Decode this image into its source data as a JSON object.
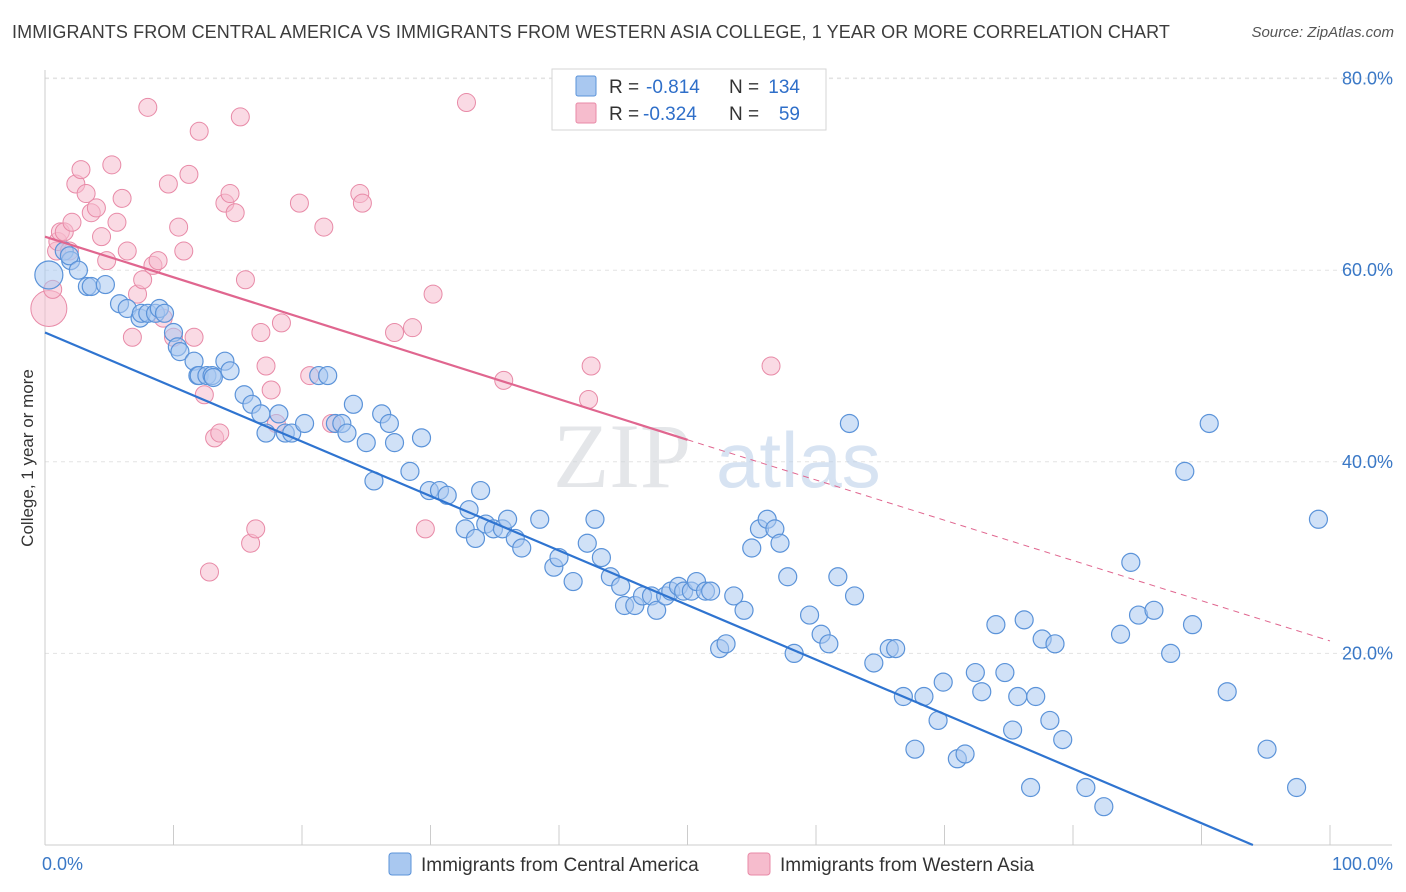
{
  "title": "IMMIGRANTS FROM CENTRAL AMERICA VS IMMIGRANTS FROM WESTERN ASIA COLLEGE, 1 YEAR OR MORE CORRELATION CHART",
  "source": "Source: ZipAtlas.com",
  "watermark": {
    "zip": "ZIP",
    "atlas": "atlas"
  },
  "colors": {
    "blue_fill": "#a9c8f0",
    "blue_stroke": "#5b93d9",
    "blue_line": "#2f74d0",
    "pink_fill": "#f6bccd",
    "pink_stroke": "#e88aa7",
    "pink_line": "#e0668f"
  },
  "legend": {
    "rows": [
      {
        "r_label": "R =",
        "r_value": "-0.814",
        "n_label": "N =",
        "n_value": "134"
      },
      {
        "r_label": "R =",
        "r_value": "-0.324",
        "n_label": "N =",
        "n_value": "59"
      }
    ]
  },
  "bottom_legend": [
    "Immigrants from Central America",
    "Immigrants from Western Asia"
  ],
  "chart_data": {
    "type": "scatter",
    "xlabel": "",
    "ylabel": "College, 1 year or more",
    "xlim": [
      0,
      100
    ],
    "ylim": [
      0,
      82
    ],
    "x_tick_labels": [
      {
        "x": 0,
        "label": "0.0%"
      },
      {
        "x": 100,
        "label": "100.0%"
      }
    ],
    "y_tick_labels": [
      {
        "y": 20,
        "label": "20.0%"
      },
      {
        "y": 40,
        "label": "40.0%"
      },
      {
        "y": 60,
        "label": "60.0%"
      },
      {
        "y": 80,
        "label": "80.0%"
      }
    ],
    "grid": true,
    "series": [
      {
        "name": "Immigrants from Central America",
        "trend": {
          "x": [
            0,
            94
          ],
          "y": [
            53.5,
            0
          ]
        },
        "points": [
          [
            0.3,
            59.5
          ],
          [
            1.5,
            62
          ],
          [
            2,
            61
          ],
          [
            1.9,
            61.5
          ],
          [
            2.6,
            60
          ],
          [
            3.3,
            58.3
          ],
          [
            3.6,
            58.3
          ],
          [
            4.7,
            58.5
          ],
          [
            5.8,
            56.5
          ],
          [
            6.4,
            56
          ],
          [
            7.4,
            55
          ],
          [
            7.5,
            55.5
          ],
          [
            8,
            55.5
          ],
          [
            8.6,
            55.5
          ],
          [
            8.9,
            56
          ],
          [
            9.3,
            55.5
          ],
          [
            10,
            53.5
          ],
          [
            10.3,
            52
          ],
          [
            10.5,
            51.5
          ],
          [
            11.6,
            50.5
          ],
          [
            11.9,
            49
          ],
          [
            12,
            49
          ],
          [
            12.6,
            49
          ],
          [
            13,
            49
          ],
          [
            13.1,
            48.8
          ],
          [
            14,
            50.5
          ],
          [
            14.4,
            49.5
          ],
          [
            15.5,
            47
          ],
          [
            16.1,
            46
          ],
          [
            16.8,
            45
          ],
          [
            17.2,
            43
          ],
          [
            18.2,
            45
          ],
          [
            18.7,
            43
          ],
          [
            19.2,
            43
          ],
          [
            20.2,
            44
          ],
          [
            21.3,
            49
          ],
          [
            22,
            49
          ],
          [
            22.6,
            44
          ],
          [
            23.1,
            44
          ],
          [
            23.5,
            43
          ],
          [
            24,
            46
          ],
          [
            25,
            42
          ],
          [
            25.6,
            38
          ],
          [
            26.2,
            45
          ],
          [
            26.8,
            44
          ],
          [
            27.2,
            42
          ],
          [
            28.4,
            39
          ],
          [
            29.3,
            42.5
          ],
          [
            29.9,
            37
          ],
          [
            30.7,
            37
          ],
          [
            31.3,
            36.5
          ],
          [
            32.7,
            33
          ],
          [
            33,
            35
          ],
          [
            33.5,
            32
          ],
          [
            33.9,
            37
          ],
          [
            34.3,
            33.5
          ],
          [
            34.9,
            33
          ],
          [
            35.6,
            33
          ],
          [
            36,
            34
          ],
          [
            36.6,
            32
          ],
          [
            37.1,
            31
          ],
          [
            38.5,
            34
          ],
          [
            39.6,
            29
          ],
          [
            40,
            30
          ],
          [
            41.1,
            27.5
          ],
          [
            42.2,
            31.5
          ],
          [
            42.8,
            34
          ],
          [
            43.3,
            30
          ],
          [
            44,
            28
          ],
          [
            44.8,
            27
          ],
          [
            45.1,
            25
          ],
          [
            45.9,
            25
          ],
          [
            46.5,
            26
          ],
          [
            47.2,
            26
          ],
          [
            47.6,
            24.5
          ],
          [
            48.3,
            26
          ],
          [
            48.7,
            26.5
          ],
          [
            49.3,
            27
          ],
          [
            49.7,
            26.5
          ],
          [
            50.3,
            26.5
          ],
          [
            50.7,
            27.5
          ],
          [
            51.4,
            26.5
          ],
          [
            51.8,
            26.5
          ],
          [
            52.5,
            20.5
          ],
          [
            53,
            21
          ],
          [
            53.6,
            26
          ],
          [
            54.4,
            24.5
          ],
          [
            55,
            31
          ],
          [
            55.6,
            33
          ],
          [
            56.2,
            34
          ],
          [
            56.8,
            33
          ],
          [
            57.2,
            31.5
          ],
          [
            57.8,
            28
          ],
          [
            58.3,
            20
          ],
          [
            59.5,
            24
          ],
          [
            60.4,
            22
          ],
          [
            61,
            21
          ],
          [
            61.7,
            28
          ],
          [
            62.6,
            44
          ],
          [
            63,
            26
          ],
          [
            64.5,
            19
          ],
          [
            65.7,
            20.5
          ],
          [
            66.2,
            20.5
          ],
          [
            66.8,
            15.5
          ],
          [
            67.7,
            10
          ],
          [
            68.4,
            15.5
          ],
          [
            69.5,
            13
          ],
          [
            69.9,
            17
          ],
          [
            71,
            9
          ],
          [
            71.6,
            9.5
          ],
          [
            72.4,
            18
          ],
          [
            72.9,
            16
          ],
          [
            74,
            23
          ],
          [
            74.7,
            18
          ],
          [
            75.3,
            12
          ],
          [
            75.7,
            15.5
          ],
          [
            76.2,
            23.5
          ],
          [
            76.7,
            6
          ],
          [
            77.1,
            15.5
          ],
          [
            77.6,
            21.5
          ],
          [
            78.2,
            13
          ],
          [
            78.6,
            21
          ],
          [
            79.2,
            11
          ],
          [
            81,
            6
          ],
          [
            82.4,
            4
          ],
          [
            83.7,
            22
          ],
          [
            84.5,
            29.5
          ],
          [
            85.1,
            24
          ],
          [
            86.3,
            24.5
          ],
          [
            87.6,
            20
          ],
          [
            88.7,
            39
          ],
          [
            89.3,
            23
          ],
          [
            90.6,
            44
          ],
          [
            92,
            16
          ],
          [
            95.1,
            10
          ],
          [
            97.4,
            6
          ],
          [
            99.1,
            34
          ]
        ]
      },
      {
        "name": "Immigrants from Western Asia",
        "trend": {
          "x": [
            0,
            50
          ],
          "y": [
            63.5,
            42.3
          ]
        },
        "trend_extension": {
          "x": [
            50,
            100
          ],
          "y": [
            42.3,
            21.3
          ]
        },
        "points": [
          [
            0.3,
            56
          ],
          [
            0.6,
            58
          ],
          [
            0.9,
            62
          ],
          [
            1,
            63
          ],
          [
            1.2,
            64
          ],
          [
            1.5,
            64
          ],
          [
            1.9,
            62
          ],
          [
            2.1,
            65
          ],
          [
            2.4,
            69
          ],
          [
            2.8,
            70.5
          ],
          [
            3.2,
            68
          ],
          [
            3.6,
            66
          ],
          [
            4,
            66.5
          ],
          [
            4.4,
            63.5
          ],
          [
            4.8,
            61
          ],
          [
            5.2,
            71
          ],
          [
            5.6,
            65
          ],
          [
            6,
            67.5
          ],
          [
            6.4,
            62
          ],
          [
            6.8,
            53
          ],
          [
            7.2,
            57.5
          ],
          [
            7.6,
            59
          ],
          [
            8,
            77
          ],
          [
            8.4,
            60.5
          ],
          [
            8.8,
            61
          ],
          [
            9.2,
            55
          ],
          [
            9.6,
            69
          ],
          [
            10,
            53
          ],
          [
            10.4,
            64.5
          ],
          [
            10.8,
            62
          ],
          [
            11.2,
            70
          ],
          [
            11.6,
            53
          ],
          [
            12,
            74.5
          ],
          [
            12.4,
            47
          ],
          [
            12.8,
            28.5
          ],
          [
            13.2,
            42.5
          ],
          [
            13.6,
            43
          ],
          [
            14,
            67
          ],
          [
            14.4,
            68
          ],
          [
            14.8,
            66
          ],
          [
            15.2,
            76
          ],
          [
            15.6,
            59
          ],
          [
            16,
            31.5
          ],
          [
            16.4,
            33
          ],
          [
            16.8,
            53.5
          ],
          [
            17.2,
            50
          ],
          [
            17.6,
            47.5
          ],
          [
            18,
            44
          ],
          [
            18.4,
            54.5
          ],
          [
            19.8,
            67
          ],
          [
            20.6,
            49
          ],
          [
            21.7,
            64.5
          ],
          [
            22.3,
            44
          ],
          [
            24.5,
            68
          ],
          [
            24.7,
            67
          ],
          [
            27.2,
            53.5
          ],
          [
            28.6,
            54
          ],
          [
            29.6,
            33
          ],
          [
            30.2,
            57.5
          ],
          [
            32.8,
            77.5
          ],
          [
            35.7,
            48.5
          ],
          [
            42.3,
            46.5
          ],
          [
            42.5,
            50
          ],
          [
            56.5,
            50
          ]
        ]
      }
    ]
  }
}
